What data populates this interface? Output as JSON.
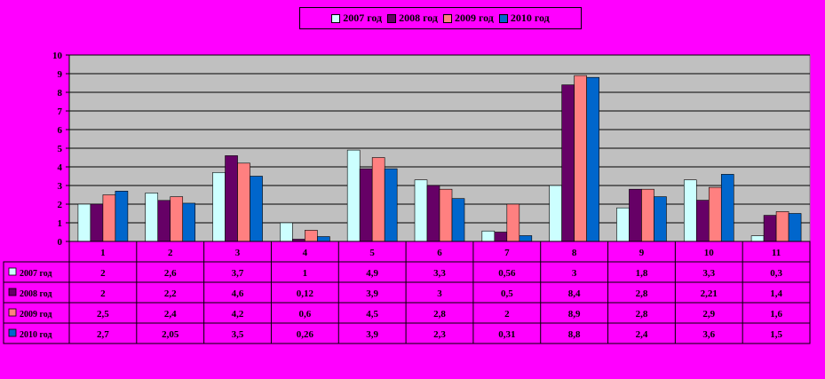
{
  "chart_data": {
    "type": "bar",
    "categories": [
      "1",
      "2",
      "3",
      "4",
      "5",
      "6",
      "7",
      "8",
      "9",
      "10",
      "11"
    ],
    "ylim": [
      0,
      10
    ],
    "yticks": [
      "0",
      "1",
      "2",
      "3",
      "4",
      "5",
      "6",
      "7",
      "8",
      "9",
      "10"
    ],
    "grid": true,
    "legend_position": "top",
    "series": [
      {
        "name": "2007 год",
        "color": "#ccffff",
        "values": [
          2,
          2.6,
          3.7,
          1,
          4.9,
          3.3,
          0.56,
          3,
          1.8,
          3.3,
          0.3
        ],
        "labels": [
          "2",
          "2,6",
          "3,7",
          "1",
          "4,9",
          "3,3",
          "0,56",
          "3",
          "1,8",
          "3,3",
          "0,3"
        ]
      },
      {
        "name": "2008 год",
        "color": "#660066",
        "values": [
          2,
          2.2,
          4.6,
          0.12,
          3.9,
          3,
          0.5,
          8.4,
          2.8,
          2.21,
          1.4
        ],
        "labels": [
          "2",
          "2,2",
          "4,6",
          "0,12",
          "3,9",
          "3",
          "0,5",
          "8,4",
          "2,8",
          "2,21",
          "1,4"
        ]
      },
      {
        "name": "2009 год",
        "color": "#ff8080",
        "values": [
          2.5,
          2.4,
          4.2,
          0.6,
          4.5,
          2.8,
          2,
          8.9,
          2.8,
          2.9,
          1.6
        ],
        "labels": [
          "2,5",
          "2,4",
          "4,2",
          "0,6",
          "4,5",
          "2,8",
          "2",
          "8,9",
          "2,8",
          "2,9",
          "1,6"
        ]
      },
      {
        "name": "2010 год",
        "color": "#0066cc",
        "values": [
          2.7,
          2.05,
          3.5,
          0.26,
          3.9,
          2.3,
          0.31,
          8.8,
          2.4,
          3.6,
          1.5
        ],
        "labels": [
          "2,7",
          "2,05",
          "3,5",
          "0,26",
          "3,9",
          "2,3",
          "0,31",
          "8,8",
          "2,4",
          "3,6",
          "1,5"
        ]
      }
    ]
  }
}
